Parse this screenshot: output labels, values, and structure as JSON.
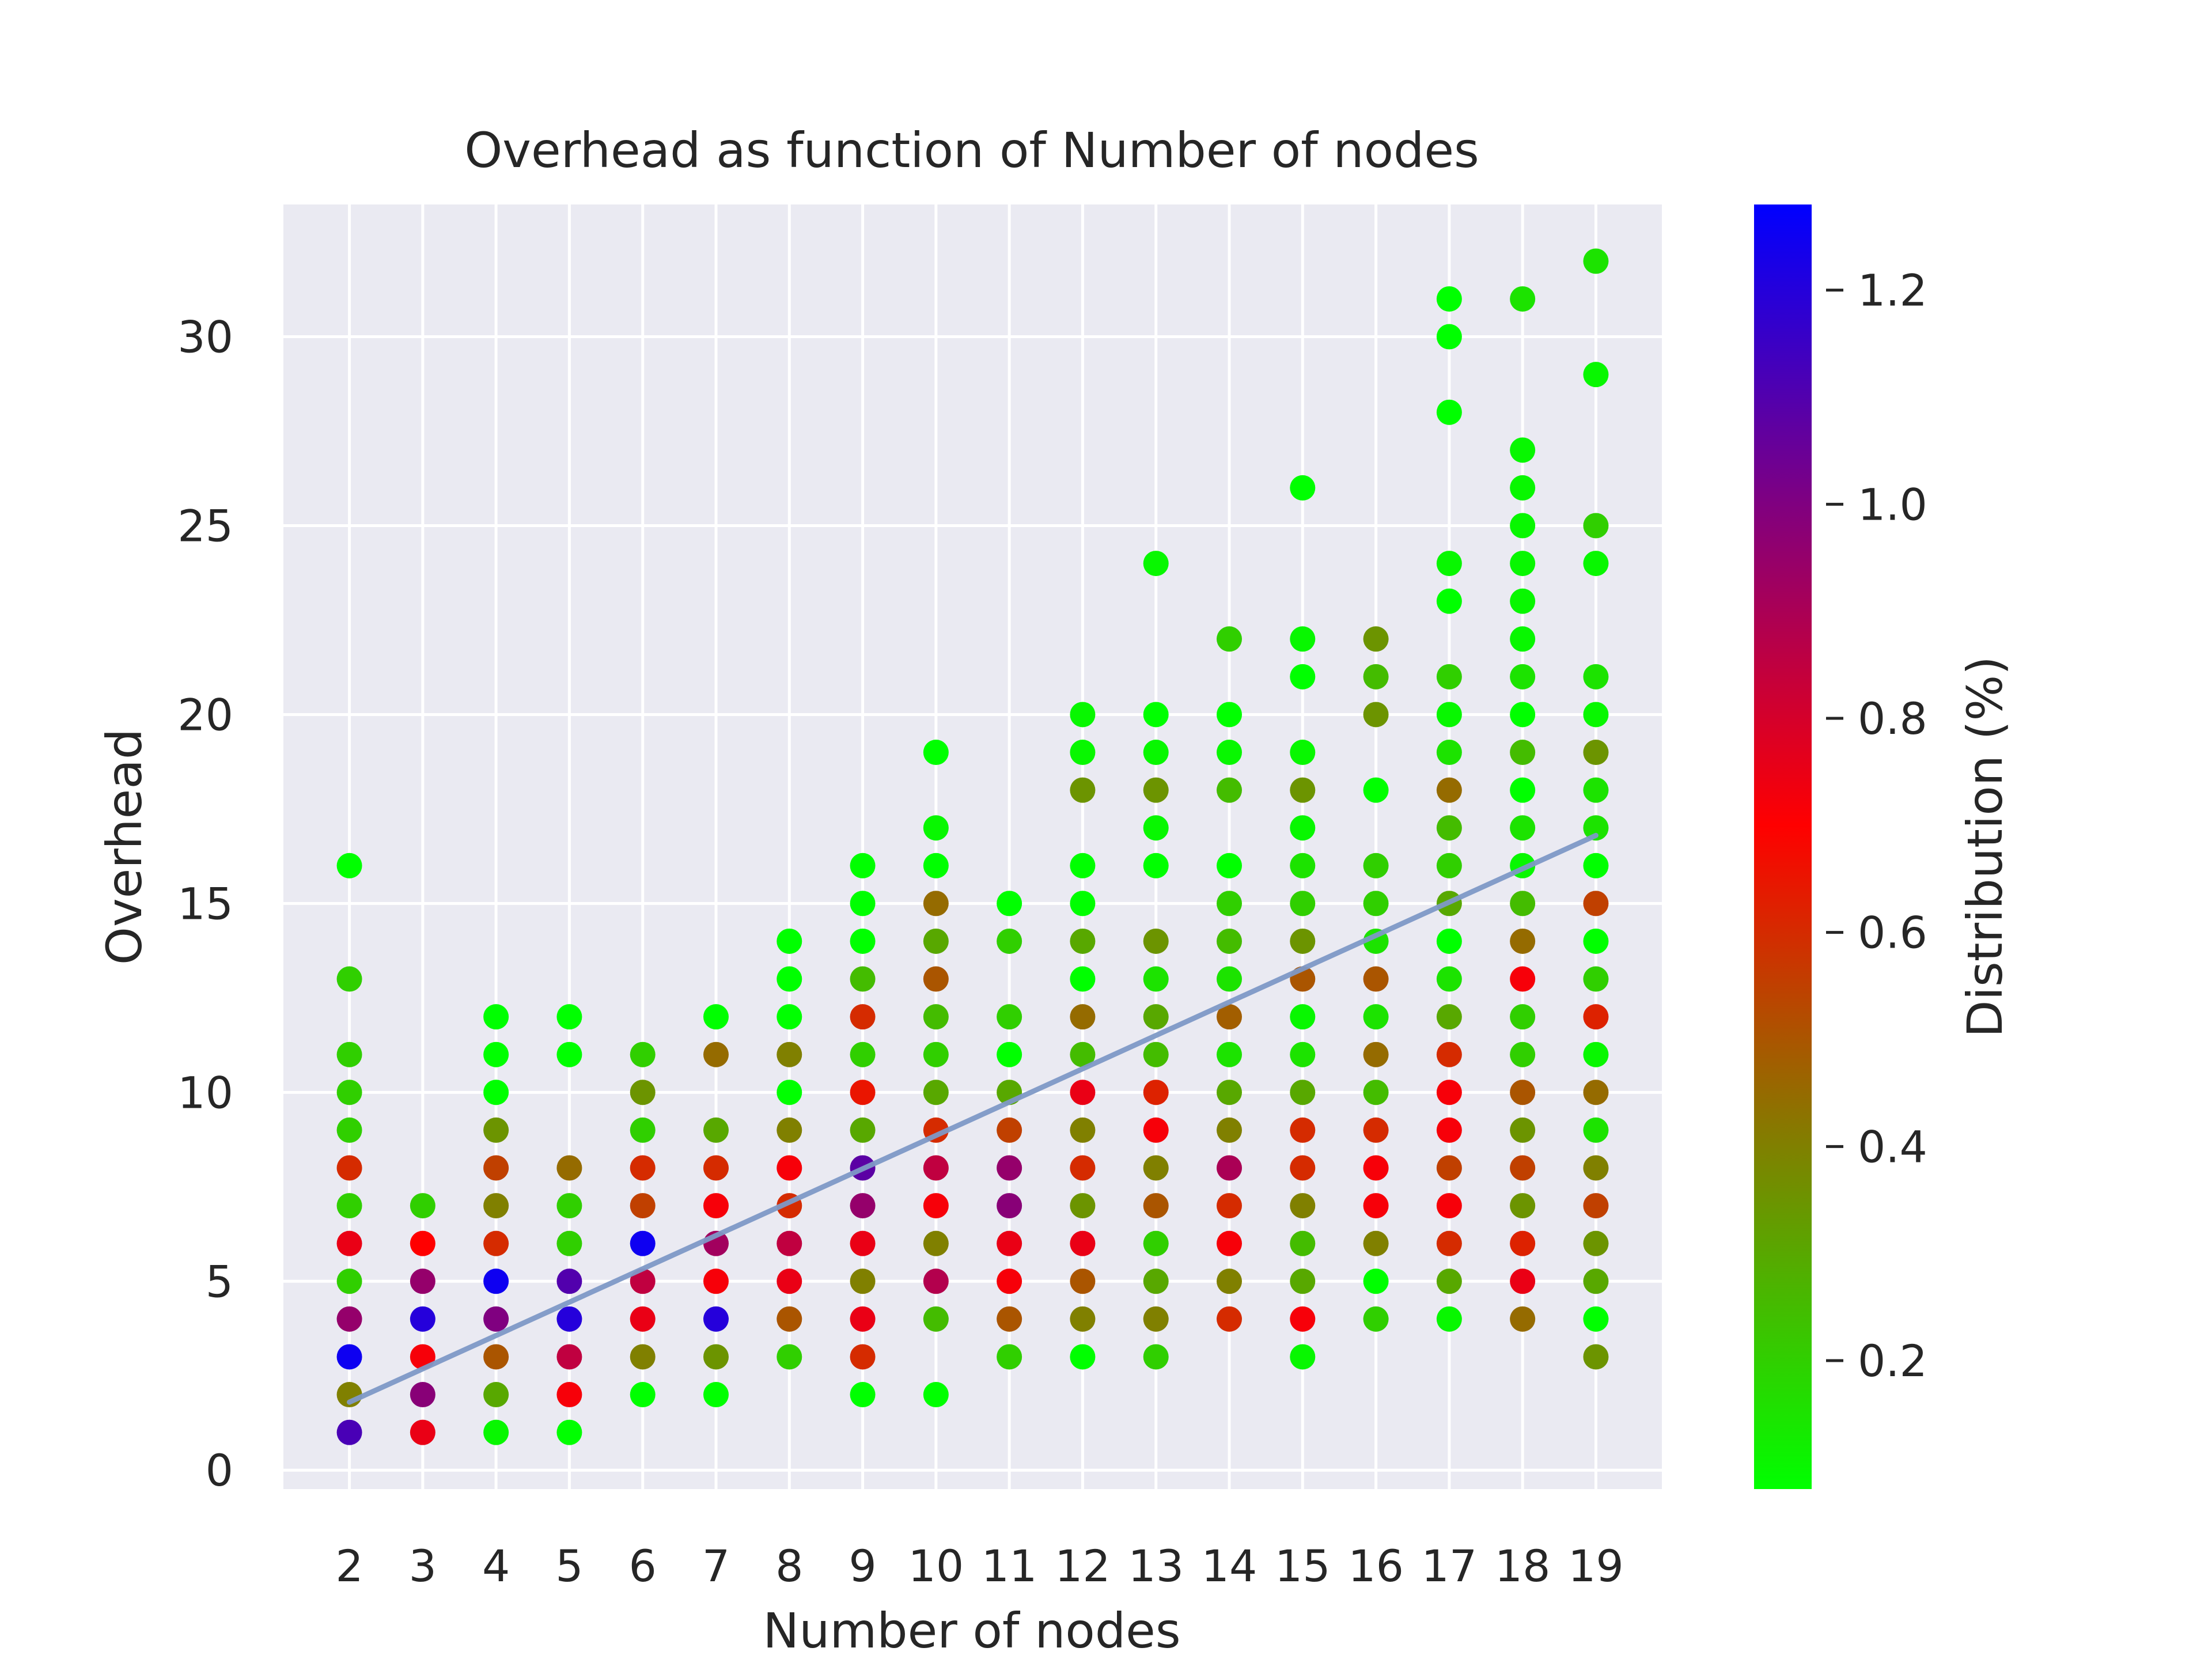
{
  "chart_data": {
    "type": "scatter",
    "title": "Overhead as function of Number of nodes",
    "xlabel": "Number of nodes",
    "ylabel": "Overhead",
    "xlim": [
      1.1,
      19.9
    ],
    "ylim": [
      -0.5,
      33.5
    ],
    "x_ticks": [
      2,
      3,
      4,
      5,
      6,
      7,
      8,
      9,
      10,
      11,
      12,
      13,
      14,
      15,
      16,
      17,
      18,
      19
    ],
    "y_ticks": [
      0,
      5,
      10,
      15,
      20,
      25,
      30
    ],
    "grid": true,
    "colorbar": {
      "label": "Distribution (%)",
      "range": [
        0.08,
        1.28
      ],
      "ticks": [
        0.2,
        0.4,
        0.6,
        0.8,
        1.0,
        1.2
      ],
      "colors": [
        {
          "value": 0.08,
          "color": "#00ff00"
        },
        {
          "value": 0.4,
          "color": "#808000"
        },
        {
          "value": 0.7,
          "color": "#ff0000"
        },
        {
          "value": 1.0,
          "color": "#800080"
        },
        {
          "value": 1.28,
          "color": "#0000ff"
        }
      ]
    },
    "trend_line": {
      "color": "#7f99c7",
      "x": [
        2,
        19
      ],
      "y": [
        1.8,
        16.8
      ]
    },
    "points": [
      [
        2,
        16,
        0.08
      ],
      [
        2,
        13,
        0.2
      ],
      [
        2,
        11,
        0.2
      ],
      [
        2,
        10,
        0.2
      ],
      [
        2,
        9,
        0.2
      ],
      [
        2,
        8,
        0.6
      ],
      [
        2,
        7,
        0.2
      ],
      [
        2,
        6,
        0.75
      ],
      [
        2,
        5,
        0.2
      ],
      [
        2,
        4,
        0.95
      ],
      [
        2,
        3,
        1.25
      ],
      [
        2,
        2,
        0.4
      ],
      [
        2,
        1,
        1.12
      ],
      [
        3,
        7,
        0.2
      ],
      [
        3,
        6,
        0.7
      ],
      [
        3,
        5,
        0.95
      ],
      [
        3,
        4,
        1.2
      ],
      [
        3,
        3,
        0.72
      ],
      [
        3,
        2,
        0.98
      ],
      [
        3,
        1,
        0.75
      ],
      [
        4,
        12,
        0.08
      ],
      [
        4,
        11,
        0.08
      ],
      [
        4,
        10,
        0.08
      ],
      [
        4,
        9,
        0.35
      ],
      [
        4,
        8,
        0.55
      ],
      [
        4,
        7,
        0.4
      ],
      [
        4,
        6,
        0.6
      ],
      [
        4,
        5,
        1.25
      ],
      [
        4,
        4,
        1.0
      ],
      [
        4,
        3,
        0.5
      ],
      [
        4,
        2,
        0.3
      ],
      [
        4,
        1,
        0.1
      ],
      [
        5,
        12,
        0.08
      ],
      [
        5,
        11,
        0.08
      ],
      [
        5,
        8,
        0.45
      ],
      [
        5,
        7,
        0.2
      ],
      [
        5,
        6,
        0.2
      ],
      [
        5,
        5,
        1.1
      ],
      [
        5,
        4,
        1.2
      ],
      [
        5,
        3,
        0.85
      ],
      [
        5,
        2,
        0.72
      ],
      [
        5,
        1,
        0.08
      ],
      [
        6,
        11,
        0.2
      ],
      [
        6,
        10,
        0.35
      ],
      [
        6,
        9,
        0.2
      ],
      [
        6,
        8,
        0.6
      ],
      [
        6,
        7,
        0.55
      ],
      [
        6,
        6,
        1.25
      ],
      [
        6,
        5,
        0.85
      ],
      [
        6,
        4,
        0.75
      ],
      [
        6,
        3,
        0.4
      ],
      [
        6,
        2,
        0.08
      ],
      [
        7,
        12,
        0.08
      ],
      [
        7,
        11,
        0.45
      ],
      [
        7,
        9,
        0.3
      ],
      [
        7,
        8,
        0.6
      ],
      [
        7,
        7,
        0.72
      ],
      [
        7,
        6,
        0.92
      ],
      [
        7,
        5,
        0.72
      ],
      [
        7,
        4,
        1.2
      ],
      [
        7,
        3,
        0.35
      ],
      [
        7,
        2,
        0.08
      ],
      [
        8,
        14,
        0.08
      ],
      [
        8,
        13,
        0.08
      ],
      [
        8,
        12,
        0.08
      ],
      [
        8,
        11,
        0.4
      ],
      [
        8,
        10,
        0.08
      ],
      [
        8,
        9,
        0.4
      ],
      [
        8,
        8,
        0.72
      ],
      [
        8,
        7,
        0.6
      ],
      [
        8,
        6,
        0.85
      ],
      [
        8,
        5,
        0.75
      ],
      [
        8,
        4,
        0.5
      ],
      [
        8,
        3,
        0.2
      ],
      [
        9,
        16,
        0.08
      ],
      [
        9,
        15,
        0.08
      ],
      [
        9,
        14,
        0.08
      ],
      [
        9,
        13,
        0.25
      ],
      [
        9,
        12,
        0.6
      ],
      [
        9,
        11,
        0.2
      ],
      [
        9,
        10,
        0.65
      ],
      [
        9,
        9,
        0.3
      ],
      [
        9,
        8,
        1.08
      ],
      [
        9,
        7,
        0.95
      ],
      [
        9,
        6,
        0.75
      ],
      [
        9,
        5,
        0.4
      ],
      [
        9,
        4,
        0.75
      ],
      [
        9,
        3,
        0.6
      ],
      [
        9,
        2,
        0.08
      ],
      [
        10,
        19,
        0.08
      ],
      [
        10,
        17,
        0.1
      ],
      [
        10,
        16,
        0.08
      ],
      [
        10,
        15,
        0.45
      ],
      [
        10,
        14,
        0.3
      ],
      [
        10,
        13,
        0.5
      ],
      [
        10,
        12,
        0.25
      ],
      [
        10,
        11,
        0.2
      ],
      [
        10,
        10,
        0.3
      ],
      [
        10,
        9,
        0.6
      ],
      [
        10,
        8,
        0.85
      ],
      [
        10,
        7,
        0.72
      ],
      [
        10,
        6,
        0.4
      ],
      [
        10,
        5,
        0.88
      ],
      [
        10,
        4,
        0.25
      ],
      [
        10,
        2,
        0.08
      ],
      [
        11,
        15,
        0.08
      ],
      [
        11,
        14,
        0.2
      ],
      [
        11,
        12,
        0.2
      ],
      [
        11,
        11,
        0.08
      ],
      [
        11,
        10,
        0.3
      ],
      [
        11,
        9,
        0.55
      ],
      [
        11,
        8,
        0.95
      ],
      [
        11,
        7,
        0.98
      ],
      [
        11,
        6,
        0.75
      ],
      [
        11,
        5,
        0.72
      ],
      [
        11,
        4,
        0.5
      ],
      [
        11,
        3,
        0.2
      ],
      [
        12,
        20,
        0.1
      ],
      [
        12,
        19,
        0.1
      ],
      [
        12,
        18,
        0.35
      ],
      [
        12,
        16,
        0.08
      ],
      [
        12,
        15,
        0.08
      ],
      [
        12,
        14,
        0.3
      ],
      [
        12,
        13,
        0.08
      ],
      [
        12,
        12,
        0.45
      ],
      [
        12,
        11,
        0.25
      ],
      [
        12,
        10,
        0.75
      ],
      [
        12,
        9,
        0.4
      ],
      [
        12,
        8,
        0.6
      ],
      [
        12,
        7,
        0.35
      ],
      [
        12,
        6,
        0.75
      ],
      [
        12,
        5,
        0.5
      ],
      [
        12,
        4,
        0.4
      ],
      [
        12,
        3,
        0.08
      ],
      [
        13,
        24,
        0.1
      ],
      [
        13,
        20,
        0.08
      ],
      [
        13,
        19,
        0.1
      ],
      [
        13,
        18,
        0.35
      ],
      [
        13,
        17,
        0.1
      ],
      [
        13,
        16,
        0.08
      ],
      [
        13,
        14,
        0.35
      ],
      [
        13,
        13,
        0.15
      ],
      [
        13,
        12,
        0.3
      ],
      [
        13,
        11,
        0.25
      ],
      [
        13,
        10,
        0.62
      ],
      [
        13,
        9,
        0.72
      ],
      [
        13,
        8,
        0.4
      ],
      [
        13,
        7,
        0.5
      ],
      [
        13,
        6,
        0.2
      ],
      [
        13,
        5,
        0.3
      ],
      [
        13,
        4,
        0.4
      ],
      [
        13,
        3,
        0.2
      ],
      [
        14,
        22,
        0.2
      ],
      [
        14,
        20,
        0.08
      ],
      [
        14,
        19,
        0.1
      ],
      [
        14,
        18,
        0.25
      ],
      [
        14,
        16,
        0.08
      ],
      [
        14,
        15,
        0.2
      ],
      [
        14,
        14,
        0.25
      ],
      [
        14,
        13,
        0.15
      ],
      [
        14,
        12,
        0.48
      ],
      [
        14,
        11,
        0.15
      ],
      [
        14,
        10,
        0.3
      ],
      [
        14,
        9,
        0.4
      ],
      [
        14,
        8,
        0.9
      ],
      [
        14,
        7,
        0.6
      ],
      [
        14,
        6,
        0.72
      ],
      [
        14,
        5,
        0.4
      ],
      [
        14,
        4,
        0.6
      ],
      [
        15,
        26,
        0.08
      ],
      [
        15,
        22,
        0.1
      ],
      [
        15,
        21,
        0.08
      ],
      [
        15,
        19,
        0.1
      ],
      [
        15,
        18,
        0.35
      ],
      [
        15,
        17,
        0.1
      ],
      [
        15,
        16,
        0.15
      ],
      [
        15,
        15,
        0.2
      ],
      [
        15,
        14,
        0.35
      ],
      [
        15,
        13,
        0.5
      ],
      [
        15,
        12,
        0.1
      ],
      [
        15,
        11,
        0.15
      ],
      [
        15,
        10,
        0.3
      ],
      [
        15,
        9,
        0.6
      ],
      [
        15,
        8,
        0.6
      ],
      [
        15,
        7,
        0.4
      ],
      [
        15,
        6,
        0.25
      ],
      [
        15,
        5,
        0.3
      ],
      [
        15,
        4,
        0.72
      ],
      [
        15,
        3,
        0.1
      ],
      [
        16,
        22,
        0.35
      ],
      [
        16,
        21,
        0.25
      ],
      [
        16,
        20,
        0.35
      ],
      [
        16,
        18,
        0.08
      ],
      [
        16,
        16,
        0.2
      ],
      [
        16,
        15,
        0.2
      ],
      [
        16,
        14,
        0.15
      ],
      [
        16,
        13,
        0.5
      ],
      [
        16,
        12,
        0.15
      ],
      [
        16,
        11,
        0.45
      ],
      [
        16,
        10,
        0.25
      ],
      [
        16,
        9,
        0.6
      ],
      [
        16,
        8,
        0.72
      ],
      [
        16,
        7,
        0.72
      ],
      [
        16,
        6,
        0.4
      ],
      [
        16,
        5,
        0.08
      ],
      [
        16,
        4,
        0.2
      ],
      [
        17,
        31,
        0.08
      ],
      [
        17,
        30,
        0.08
      ],
      [
        17,
        28,
        0.08
      ],
      [
        17,
        24,
        0.1
      ],
      [
        17,
        23,
        0.08
      ],
      [
        17,
        21,
        0.2
      ],
      [
        17,
        20,
        0.1
      ],
      [
        17,
        19,
        0.15
      ],
      [
        17,
        18,
        0.45
      ],
      [
        17,
        17,
        0.25
      ],
      [
        17,
        16,
        0.2
      ],
      [
        17,
        15,
        0.3
      ],
      [
        17,
        14,
        0.08
      ],
      [
        17,
        13,
        0.15
      ],
      [
        17,
        12,
        0.3
      ],
      [
        17,
        11,
        0.6
      ],
      [
        17,
        10,
        0.72
      ],
      [
        17,
        9,
        0.72
      ],
      [
        17,
        8,
        0.55
      ],
      [
        17,
        7,
        0.72
      ],
      [
        17,
        6,
        0.6
      ],
      [
        17,
        5,
        0.3
      ],
      [
        17,
        4,
        0.1
      ],
      [
        18,
        31,
        0.15
      ],
      [
        18,
        27,
        0.1
      ],
      [
        18,
        26,
        0.1
      ],
      [
        18,
        25,
        0.1
      ],
      [
        18,
        24,
        0.1
      ],
      [
        18,
        23,
        0.1
      ],
      [
        18,
        22,
        0.1
      ],
      [
        18,
        21,
        0.15
      ],
      [
        18,
        20,
        0.08
      ],
      [
        18,
        19,
        0.25
      ],
      [
        18,
        18,
        0.08
      ],
      [
        18,
        17,
        0.15
      ],
      [
        18,
        16,
        0.1
      ],
      [
        18,
        15,
        0.25
      ],
      [
        18,
        14,
        0.45
      ],
      [
        18,
        13,
        0.72
      ],
      [
        18,
        12,
        0.2
      ],
      [
        18,
        11,
        0.2
      ],
      [
        18,
        10,
        0.5
      ],
      [
        18,
        9,
        0.35
      ],
      [
        18,
        8,
        0.55
      ],
      [
        18,
        7,
        0.35
      ],
      [
        18,
        6,
        0.62
      ],
      [
        18,
        5,
        0.75
      ],
      [
        18,
        4,
        0.45
      ],
      [
        19,
        32,
        0.15
      ],
      [
        19,
        29,
        0.1
      ],
      [
        19,
        25,
        0.2
      ],
      [
        19,
        24,
        0.1
      ],
      [
        19,
        21,
        0.15
      ],
      [
        19,
        20,
        0.1
      ],
      [
        19,
        19,
        0.35
      ],
      [
        19,
        18,
        0.15
      ],
      [
        19,
        17,
        0.15
      ],
      [
        19,
        16,
        0.08
      ],
      [
        19,
        15,
        0.55
      ],
      [
        19,
        14,
        0.08
      ],
      [
        19,
        13,
        0.2
      ],
      [
        19,
        12,
        0.62
      ],
      [
        19,
        11,
        0.1
      ],
      [
        19,
        10,
        0.45
      ],
      [
        19,
        9,
        0.15
      ],
      [
        19,
        8,
        0.4
      ],
      [
        19,
        7,
        0.55
      ],
      [
        19,
        6,
        0.35
      ],
      [
        19,
        5,
        0.3
      ],
      [
        19,
        4,
        0.08
      ],
      [
        19,
        3,
        0.35
      ]
    ]
  }
}
